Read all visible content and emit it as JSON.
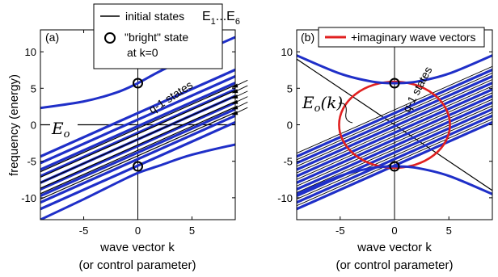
{
  "figure": {
    "shared_xlabel_line1": "wave vector k",
    "shared_xlabel_line2": "(or control parameter)",
    "shared_ylabel": "frequency (energy)"
  },
  "chart_data": [
    {
      "type": "line",
      "panel_label": "(a)",
      "xlabel": "wave vector k",
      "xlabel_sub": "(or control parameter)",
      "ylabel": "frequency (energy)",
      "xlim": [
        -9,
        9
      ],
      "ylim": [
        -13,
        13
      ],
      "xticks": [
        -5,
        0,
        5
      ],
      "yticks": [
        -10,
        -5,
        0,
        5,
        10
      ],
      "initial_states": {
        "color": "#000000",
        "slope": 0.66,
        "intercepts": [
          -0.5,
          -1.25,
          -2.0,
          -2.75,
          -3.5,
          -4.25
        ],
        "note": "E1...E6 parallel lines"
      },
      "eo_line": {
        "slope": 0,
        "intercept": 0,
        "color": "#000000"
      },
      "blue_curves": {
        "color": "#1f2fc8",
        "upper_branch": {
          "k": [
            -9,
            -5,
            -2,
            0,
            2,
            5,
            9
          ],
          "y": [
            2.3,
            3.2,
            4.4,
            5.7,
            7.3,
            9.4,
            12.0
          ]
        },
        "lower_branch": {
          "k": [
            -9,
            -5,
            -2,
            0,
            2,
            5,
            9
          ],
          "y": [
            -13.0,
            -10.2,
            -8.0,
            -6.6,
            -5.6,
            -4.1,
            -2.7
          ]
        },
        "q_minus_1_states": {
          "slope": 0.66,
          "intercepts": [
            1.6,
            0.7,
            -0.2,
            -1.1,
            -2.0,
            -2.9,
            -3.8,
            -4.7,
            -5.6
          ]
        }
      },
      "bright_state_markers": [
        {
          "k": 0,
          "y": 5.7
        },
        {
          "k": 0,
          "y": -5.7
        }
      ],
      "legend": {
        "position": "top-center",
        "entries": [
          {
            "label": "initial states",
            "marker": "line",
            "color": "#000000"
          },
          {
            "label": "\"bright\" state",
            "label2": "at k=0",
            "marker": "circle",
            "color": "#000000"
          }
        ]
      },
      "annotations": {
        "energy_levels": "E₁...E₆",
        "energy_levels_label": "E",
        "energy_levels_sub1": "1",
        "energy_levels_sep": "...E",
        "energy_levels_sub6": "6",
        "q_states": "q-1 states",
        "eo_symbol": "E",
        "eo_sub": "o"
      }
    },
    {
      "type": "line",
      "panel_label": "(b)",
      "xlabel": "wave vector k",
      "xlabel_sub": "(or control parameter)",
      "xlim": [
        -9,
        9
      ],
      "ylim": [
        -13,
        13
      ],
      "xticks": [
        -5,
        0,
        5
      ],
      "yticks": [
        -10,
        -5,
        0,
        5,
        10
      ],
      "eo_line": {
        "slope": -1.0,
        "intercept": 0,
        "color": "#000000"
      },
      "blue_curves": {
        "color": "#1f2fc8",
        "upper_branch": {
          "k": [
            -9,
            -5,
            -2,
            0,
            2,
            5,
            9
          ],
          "y": [
            9.5,
            7.0,
            5.9,
            5.7,
            5.9,
            7.0,
            9.5
          ]
        },
        "lower_branch": {
          "k": [
            -9,
            -5,
            -2,
            0,
            2,
            5,
            9
          ],
          "y": [
            -9.5,
            -7.0,
            -5.9,
            -5.7,
            -5.9,
            -7.0,
            -9.5
          ]
        },
        "q_minus_1_states": {
          "slope": 0.66,
          "intercepts": [
            1.6,
            0.7,
            -0.2,
            -1.1,
            -2.0,
            -2.9,
            -3.8,
            -4.7,
            -5.6
          ]
        }
      },
      "imaginary_loop": {
        "color": "#e02020",
        "center": [
          0,
          0
        ],
        "rx": 5.1,
        "ry": 5.9
      },
      "bright_state_markers": [
        {
          "k": 0,
          "y": 5.7
        },
        {
          "k": 0,
          "y": -5.7
        }
      ],
      "legend": {
        "position": "top-right",
        "entries": [
          {
            "label": "+imaginary wave vectors",
            "marker": "line",
            "color": "#e02020"
          }
        ]
      },
      "annotations": {
        "q_states": "q-1 states",
        "eo_symbol": "E",
        "eo_sub": "o",
        "eo_arg": "(k)"
      }
    }
  ]
}
